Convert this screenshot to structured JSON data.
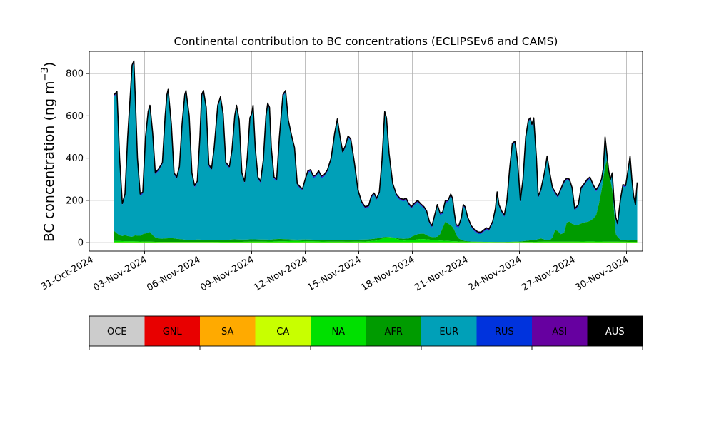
{
  "chart_data": {
    "type": "area",
    "title": "Continental contribution to BC concentrations (ECLIPSEv6 and CAMS)",
    "ylabel_main": "BC concentration (ng m",
    "ylabel_sup": "−3",
    "ylabel_close": ")",
    "ylim": [
      -40,
      905
    ],
    "xlim": [
      -0.1,
      30.9
    ],
    "grid": true,
    "stacked": true,
    "x_ticks": [
      {
        "x": 0,
        "label": "31-Oct-2024"
      },
      {
        "x": 3,
        "label": "03-Nov-2024"
      },
      {
        "x": 6,
        "label": "06-Nov-2024"
      },
      {
        "x": 9,
        "label": "09-Nov-2024"
      },
      {
        "x": 12,
        "label": "12-Nov-2024"
      },
      {
        "x": 15,
        "label": "15-Nov-2024"
      },
      {
        "x": 18,
        "label": "18-Nov-2024"
      },
      {
        "x": 21,
        "label": "21-Nov-2024"
      },
      {
        "x": 24,
        "label": "24-Nov-2024"
      },
      {
        "x": 27,
        "label": "27-Nov-2024"
      },
      {
        "x": 30,
        "label": "30-Nov-2024"
      }
    ],
    "y_ticks": [
      {
        "y": 0,
        "label": "0"
      },
      {
        "y": 200,
        "label": "200"
      },
      {
        "y": 400,
        "label": "400"
      },
      {
        "y": 600,
        "label": "600"
      },
      {
        "y": 800,
        "label": "800"
      }
    ],
    "legend": [
      {
        "name": "OCE",
        "color": "#cccccc",
        "text_color": "#000000"
      },
      {
        "name": "GNL",
        "color": "#e80000",
        "text_color": "#000000"
      },
      {
        "name": "SA",
        "color": "#ffaa00",
        "text_color": "#000000"
      },
      {
        "name": "CA",
        "color": "#c8ff00",
        "text_color": "#000000"
      },
      {
        "name": "NA",
        "color": "#00e000",
        "text_color": "#000000"
      },
      {
        "name": "AFR",
        "color": "#009b00",
        "text_color": "#000000"
      },
      {
        "name": "EUR",
        "color": "#00a0b8",
        "text_color": "#000000"
      },
      {
        "name": "RUS",
        "color": "#0033dd",
        "text_color": "#000000"
      },
      {
        "name": "ASI",
        "color": "#6600a0",
        "text_color": "#000000"
      },
      {
        "name": "AUS",
        "color": "#000000",
        "text_color": "#ffffff"
      }
    ],
    "total_series": [
      [
        1.3,
        700
      ],
      [
        1.45,
        715
      ],
      [
        1.6,
        400
      ],
      [
        1.75,
        185
      ],
      [
        1.9,
        230
      ],
      [
        2.05,
        500
      ],
      [
        2.2,
        700
      ],
      [
        2.3,
        840
      ],
      [
        2.4,
        860
      ],
      [
        2.5,
        640
      ],
      [
        2.6,
        400
      ],
      [
        2.75,
        230
      ],
      [
        2.9,
        240
      ],
      [
        3.05,
        500
      ],
      [
        3.2,
        620
      ],
      [
        3.3,
        650
      ],
      [
        3.45,
        520
      ],
      [
        3.6,
        330
      ],
      [
        3.8,
        350
      ],
      [
        4.0,
        380
      ],
      [
        4.15,
        600
      ],
      [
        4.25,
        700
      ],
      [
        4.32,
        725
      ],
      [
        4.5,
        560
      ],
      [
        4.65,
        330
      ],
      [
        4.8,
        310
      ],
      [
        4.95,
        360
      ],
      [
        5.1,
        560
      ],
      [
        5.25,
        700
      ],
      [
        5.32,
        720
      ],
      [
        5.5,
        600
      ],
      [
        5.65,
        330
      ],
      [
        5.8,
        270
      ],
      [
        5.95,
        290
      ],
      [
        6.1,
        500
      ],
      [
        6.2,
        700
      ],
      [
        6.3,
        720
      ],
      [
        6.45,
        640
      ],
      [
        6.6,
        370
      ],
      [
        6.75,
        350
      ],
      [
        6.9,
        450
      ],
      [
        7.1,
        650
      ],
      [
        7.25,
        690
      ],
      [
        7.4,
        610
      ],
      [
        7.55,
        380
      ],
      [
        7.75,
        360
      ],
      [
        7.9,
        440
      ],
      [
        8.05,
        600
      ],
      [
        8.15,
        650
      ],
      [
        8.3,
        580
      ],
      [
        8.45,
        330
      ],
      [
        8.6,
        290
      ],
      [
        8.75,
        400
      ],
      [
        8.9,
        590
      ],
      [
        9.0,
        610
      ],
      [
        9.08,
        650
      ],
      [
        9.2,
        450
      ],
      [
        9.35,
        310
      ],
      [
        9.5,
        290
      ],
      [
        9.65,
        390
      ],
      [
        9.8,
        600
      ],
      [
        9.9,
        660
      ],
      [
        10.0,
        640
      ],
      [
        10.1,
        450
      ],
      [
        10.25,
        310
      ],
      [
        10.4,
        300
      ],
      [
        10.55,
        500
      ],
      [
        10.75,
        700
      ],
      [
        10.9,
        720
      ],
      [
        11.05,
        580
      ],
      [
        11.25,
        500
      ],
      [
        11.4,
        450
      ],
      [
        11.55,
        280
      ],
      [
        11.7,
        265
      ],
      [
        11.85,
        255
      ],
      [
        12.0,
        300
      ],
      [
        12.15,
        340
      ],
      [
        12.3,
        345
      ],
      [
        12.45,
        315
      ],
      [
        12.6,
        320
      ],
      [
        12.75,
        340
      ],
      [
        12.9,
        315
      ],
      [
        13.05,
        320
      ],
      [
        13.25,
        345
      ],
      [
        13.45,
        400
      ],
      [
        13.65,
        520
      ],
      [
        13.8,
        585
      ],
      [
        13.95,
        500
      ],
      [
        14.1,
        430
      ],
      [
        14.25,
        460
      ],
      [
        14.4,
        505
      ],
      [
        14.55,
        490
      ],
      [
        14.75,
        380
      ],
      [
        14.95,
        250
      ],
      [
        15.15,
        195
      ],
      [
        15.35,
        170
      ],
      [
        15.55,
        175
      ],
      [
        15.7,
        220
      ],
      [
        15.85,
        235
      ],
      [
        16.0,
        210
      ],
      [
        16.15,
        240
      ],
      [
        16.3,
        390
      ],
      [
        16.45,
        620
      ],
      [
        16.55,
        590
      ],
      [
        16.7,
        420
      ],
      [
        16.9,
        280
      ],
      [
        17.1,
        230
      ],
      [
        17.3,
        210
      ],
      [
        17.5,
        205
      ],
      [
        17.65,
        210
      ],
      [
        17.8,
        185
      ],
      [
        17.95,
        170
      ],
      [
        18.1,
        185
      ],
      [
        18.3,
        200
      ],
      [
        18.45,
        185
      ],
      [
        18.65,
        170
      ],
      [
        18.8,
        150
      ],
      [
        18.95,
        100
      ],
      [
        19.1,
        80
      ],
      [
        19.25,
        130
      ],
      [
        19.4,
        180
      ],
      [
        19.55,
        140
      ],
      [
        19.7,
        145
      ],
      [
        19.85,
        200
      ],
      [
        20.0,
        200
      ],
      [
        20.15,
        230
      ],
      [
        20.25,
        210
      ],
      [
        20.35,
        140
      ],
      [
        20.45,
        85
      ],
      [
        20.6,
        80
      ],
      [
        20.75,
        120
      ],
      [
        20.85,
        180
      ],
      [
        20.95,
        170
      ],
      [
        21.1,
        120
      ],
      [
        21.3,
        80
      ],
      [
        21.5,
        60
      ],
      [
        21.7,
        50
      ],
      [
        21.85,
        50
      ],
      [
        22.0,
        60
      ],
      [
        22.15,
        70
      ],
      [
        22.3,
        65
      ],
      [
        22.5,
        100
      ],
      [
        22.65,
        160
      ],
      [
        22.75,
        240
      ],
      [
        22.85,
        180
      ],
      [
        23.0,
        150
      ],
      [
        23.15,
        130
      ],
      [
        23.3,
        200
      ],
      [
        23.45,
        350
      ],
      [
        23.6,
        470
      ],
      [
        23.75,
        480
      ],
      [
        23.9,
        380
      ],
      [
        24.05,
        200
      ],
      [
        24.2,
        300
      ],
      [
        24.35,
        500
      ],
      [
        24.5,
        580
      ],
      [
        24.6,
        590
      ],
      [
        24.7,
        560
      ],
      [
        24.8,
        590
      ],
      [
        24.95,
        400
      ],
      [
        25.05,
        220
      ],
      [
        25.2,
        250
      ],
      [
        25.4,
        330
      ],
      [
        25.55,
        410
      ],
      [
        25.7,
        330
      ],
      [
        25.85,
        260
      ],
      [
        26.0,
        240
      ],
      [
        26.15,
        220
      ],
      [
        26.3,
        250
      ],
      [
        26.5,
        290
      ],
      [
        26.65,
        305
      ],
      [
        26.8,
        300
      ],
      [
        26.95,
        260
      ],
      [
        27.1,
        160
      ],
      [
        27.3,
        180
      ],
      [
        27.45,
        260
      ],
      [
        27.6,
        275
      ],
      [
        27.8,
        300
      ],
      [
        27.95,
        310
      ],
      [
        28.15,
        270
      ],
      [
        28.3,
        250
      ],
      [
        28.45,
        270
      ],
      [
        28.6,
        300
      ],
      [
        28.7,
        350
      ],
      [
        28.8,
        500
      ],
      [
        28.9,
        420
      ],
      [
        29.0,
        340
      ],
      [
        29.1,
        300
      ],
      [
        29.2,
        330
      ],
      [
        29.3,
        200
      ],
      [
        29.4,
        120
      ],
      [
        29.5,
        90
      ],
      [
        29.65,
        200
      ],
      [
        29.8,
        275
      ],
      [
        29.95,
        270
      ],
      [
        30.1,
        350
      ],
      [
        30.2,
        410
      ],
      [
        30.3,
        300
      ],
      [
        30.4,
        220
      ],
      [
        30.5,
        180
      ],
      [
        30.6,
        285
      ]
    ],
    "afr_series": [
      [
        1.3,
        55
      ],
      [
        1.5,
        40
      ],
      [
        1.7,
        30
      ],
      [
        1.9,
        35
      ],
      [
        2.1,
        30
      ],
      [
        2.3,
        28
      ],
      [
        2.5,
        35
      ],
      [
        2.7,
        30
      ],
      [
        2.9,
        40
      ],
      [
        3.1,
        45
      ],
      [
        3.3,
        50
      ],
      [
        3.5,
        30
      ],
      [
        3.7,
        20
      ],
      [
        3.9,
        18
      ],
      [
        4.2,
        20
      ],
      [
        4.5,
        22
      ],
      [
        4.8,
        18
      ],
      [
        5.2,
        15
      ],
      [
        5.5,
        12
      ],
      [
        6.0,
        15
      ],
      [
        6.5,
        12
      ],
      [
        7.0,
        14
      ],
      [
        7.5,
        12
      ],
      [
        8.0,
        16
      ],
      [
        8.5,
        14
      ],
      [
        9.0,
        16
      ],
      [
        9.5,
        15
      ],
      [
        10.0,
        14
      ],
      [
        10.5,
        18
      ],
      [
        11.0,
        16
      ],
      [
        11.5,
        14
      ],
      [
        12.0,
        15
      ],
      [
        12.5,
        14
      ],
      [
        13.0,
        13
      ],
      [
        13.5,
        12
      ],
      [
        14.0,
        12
      ],
      [
        14.5,
        13
      ],
      [
        15.0,
        14
      ],
      [
        15.5,
        15
      ],
      [
        16.0,
        20
      ],
      [
        16.3,
        25
      ],
      [
        16.6,
        28
      ],
      [
        16.9,
        25
      ],
      [
        17.2,
        20
      ],
      [
        17.5,
        18
      ],
      [
        17.8,
        20
      ],
      [
        18.0,
        30
      ],
      [
        18.3,
        40
      ],
      [
        18.6,
        45
      ],
      [
        18.9,
        30
      ],
      [
        19.2,
        25
      ],
      [
        19.5,
        30
      ],
      [
        19.7,
        70
      ],
      [
        19.85,
        100
      ],
      [
        20.0,
        90
      ],
      [
        20.2,
        80
      ],
      [
        20.35,
        60
      ],
      [
        20.5,
        25
      ],
      [
        20.8,
        10
      ],
      [
        21.2,
        5
      ],
      [
        22.0,
        4
      ],
      [
        23.0,
        3
      ],
      [
        24.0,
        5
      ],
      [
        24.5,
        10
      ],
      [
        25.0,
        15
      ],
      [
        25.2,
        20
      ],
      [
        25.4,
        15
      ],
      [
        25.6,
        10
      ],
      [
        25.8,
        12
      ],
      [
        26.0,
        60
      ],
      [
        26.15,
        55
      ],
      [
        26.3,
        40
      ],
      [
        26.5,
        45
      ],
      [
        26.65,
        95
      ],
      [
        26.8,
        100
      ],
      [
        27.0,
        85
      ],
      [
        27.3,
        85
      ],
      [
        27.6,
        95
      ],
      [
        27.9,
        100
      ],
      [
        28.1,
        110
      ],
      [
        28.3,
        130
      ],
      [
        28.5,
        200
      ],
      [
        28.65,
        270
      ],
      [
        28.8,
        360
      ],
      [
        28.9,
        390
      ],
      [
        29.0,
        380
      ],
      [
        29.1,
        310
      ],
      [
        29.2,
        250
      ],
      [
        29.3,
        150
      ],
      [
        29.4,
        40
      ],
      [
        29.6,
        15
      ],
      [
        30.0,
        10
      ],
      [
        30.6,
        12
      ]
    ],
    "na_series": [
      [
        1.3,
        8
      ],
      [
        2.5,
        6
      ],
      [
        3.5,
        4
      ],
      [
        4.5,
        3
      ],
      [
        5.5,
        3
      ],
      [
        6.5,
        3
      ],
      [
        7.5,
        4
      ],
      [
        8.5,
        4
      ],
      [
        9.5,
        5
      ],
      [
        10.5,
        6
      ],
      [
        11.5,
        8
      ],
      [
        12.5,
        6
      ],
      [
        13.5,
        5
      ],
      [
        14.5,
        4
      ],
      [
        15.5,
        6
      ],
      [
        16.0,
        10
      ],
      [
        16.3,
        18
      ],
      [
        16.6,
        26
      ],
      [
        16.9,
        24
      ],
      [
        17.2,
        15
      ],
      [
        17.5,
        10
      ],
      [
        18.0,
        12
      ],
      [
        18.5,
        18
      ],
      [
        19.0,
        14
      ],
      [
        19.5,
        10
      ],
      [
        20.0,
        8
      ],
      [
        21.0,
        4
      ],
      [
        22.0,
        3
      ],
      [
        23.0,
        2
      ],
      [
        24.0,
        3
      ],
      [
        25.0,
        4
      ],
      [
        26.0,
        5
      ],
      [
        27.0,
        5
      ],
      [
        28.0,
        6
      ],
      [
        29.0,
        5
      ],
      [
        30.0,
        4
      ],
      [
        30.6,
        4
      ]
    ]
  }
}
